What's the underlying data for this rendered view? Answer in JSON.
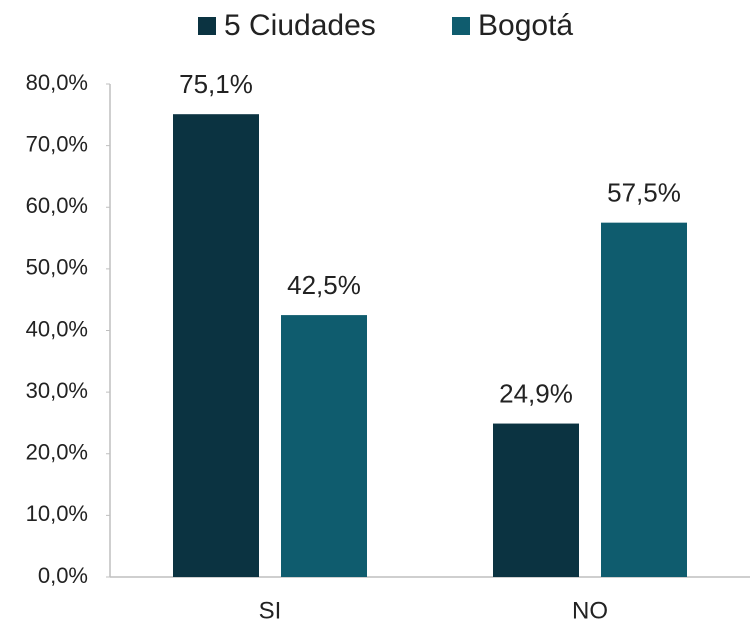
{
  "chart_data": {
    "type": "bar",
    "categories": [
      "SI",
      "NO"
    ],
    "series": [
      {
        "name": "5 Ciudades",
        "color": "#0b3341",
        "values": [
          75.1,
          24.9
        ],
        "value_labels": [
          "75,1%",
          "24,9%"
        ]
      },
      {
        "name": "Bogotá",
        "color": "#0f5c6e",
        "values": [
          42.5,
          57.5
        ],
        "value_labels": [
          "42,5%",
          "57,5%"
        ]
      }
    ],
    "ylim": [
      0,
      80
    ],
    "yticks": [
      {
        "value": 0,
        "label": "0,0%"
      },
      {
        "value": 10,
        "label": "10,0%"
      },
      {
        "value": 20,
        "label": "20,0%"
      },
      {
        "value": 30,
        "label": "30,0%"
      },
      {
        "value": 40,
        "label": "40,0%"
      },
      {
        "value": 50,
        "label": "50,0%"
      },
      {
        "value": 60,
        "label": "60,0%"
      },
      {
        "value": 70,
        "label": "70,0%"
      },
      {
        "value": 80,
        "label": "80,0%"
      }
    ],
    "grid": false,
    "legend": "top"
  }
}
